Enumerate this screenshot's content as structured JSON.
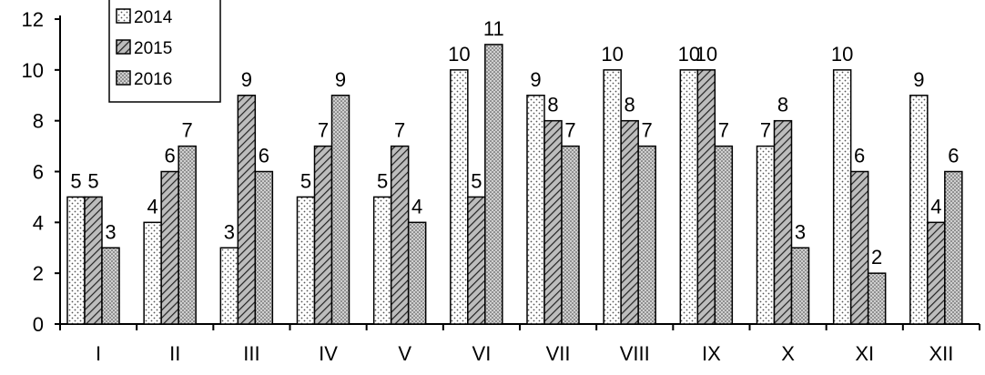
{
  "chart_data": {
    "type": "bar",
    "categories": [
      "I",
      "II",
      "III",
      "IV",
      "V",
      "VI",
      "VII",
      "VIII",
      "IX",
      "X",
      "XI",
      "XII"
    ],
    "series": [
      {
        "name": "2014",
        "values": [
          5,
          4,
          3,
          5,
          5,
          10,
          9,
          10,
          10,
          7,
          10,
          9
        ],
        "pattern": "dotted"
      },
      {
        "name": "2015",
        "values": [
          5,
          6,
          9,
          7,
          7,
          5,
          8,
          8,
          10,
          8,
          6,
          4
        ],
        "pattern": "hatched"
      },
      {
        "name": "2016",
        "values": [
          3,
          7,
          6,
          9,
          4,
          11,
          7,
          7,
          7,
          3,
          2,
          6
        ],
        "pattern": "dense-dotted"
      }
    ],
    "y_ticks": [
      "0",
      "2",
      "4",
      "6",
      "8",
      "10",
      "12"
    ],
    "ylim": [
      0,
      12
    ],
    "title": "",
    "xlabel": "",
    "ylabel": "",
    "grid": false,
    "legend_position": "top-left",
    "data_labels": true,
    "colors": {
      "bar_stroke": "#000000",
      "dots": "#555555",
      "background": "#ffffff"
    }
  }
}
